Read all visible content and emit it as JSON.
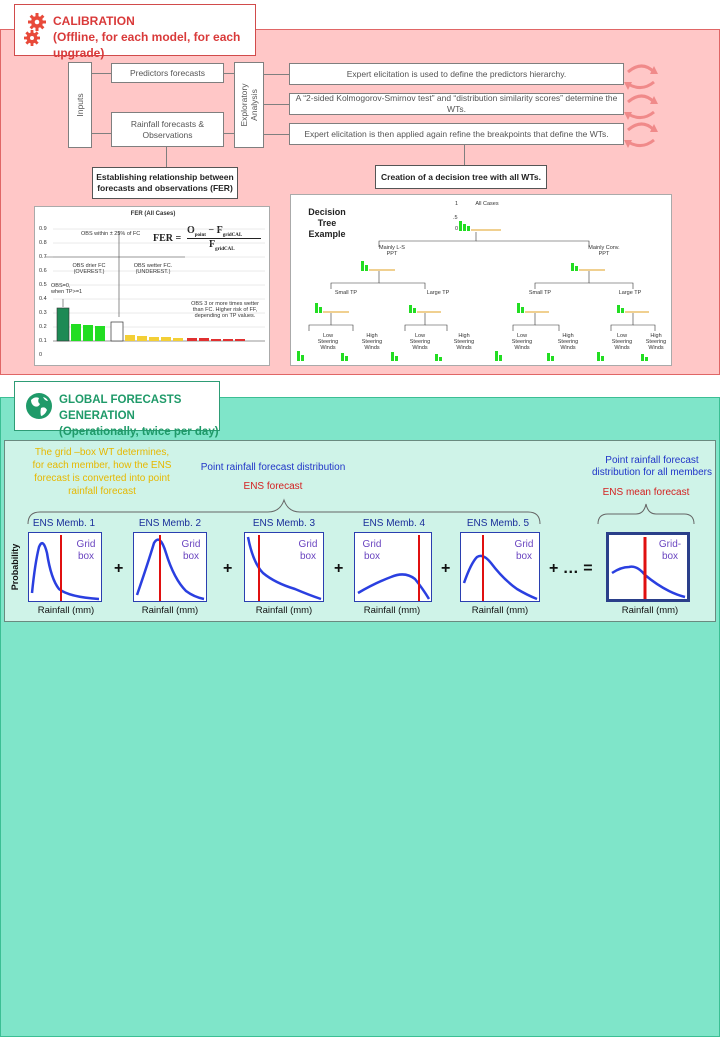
{
  "calibration": {
    "title": "CALIBRATION",
    "subtitle": "(Offline, for each model, for each upgrade)",
    "inputs_label": "Inputs",
    "predictors": "Predictors forecasts",
    "rainfall_obs": "Rainfall forecasts & Observations",
    "exploratory": "Exploratory Analysis",
    "step1": "Expert elicitation is used to define the predictors hierarchy.",
    "step2": "A “2-sided Kolmogorov-Smirnov test” and “distribution similarity scores” determine the WTs.",
    "step3": "Expert elicitation is then applied again refine the breakpoints that define the WTs.",
    "establish": "Establishing relationship between forecasts and observations (FER)",
    "creation": "Creation of a decision tree with all WTs.",
    "fer_chart": {
      "title": "FER (All Cases)",
      "formula_lhs": "FER =",
      "formula_num": "O",
      "formula_num_sub": "point",
      "formula_minus": " − F",
      "formula_minus_sub": "gridCAL",
      "formula_den": "F",
      "formula_den_sub": "gridCAL",
      "obs_within": "OBS within ± 25% of FC",
      "obs_drier": "OBS drier FC (OVEREST.)",
      "obs_wetter": "OBS wetter FC. (UNDEREST.)",
      "obs_zero": "OBS=0, when TP>=1",
      "obs_3x": "OBS 3 or more times wetter than FC. Higher risk of FF, depending on TP values.",
      "y_ticks": [
        "0.9",
        "0.8",
        "0.7",
        "0.6",
        "0.5",
        "0.4",
        "0.3",
        "0.2",
        "0.1",
        "0"
      ]
    },
    "tree": {
      "title": "Decision Tree Example",
      "root": "All Cases",
      "n1": "Mainly L-S PPT",
      "n2": "Mainly Conv. PPT",
      "n3": "Small TP",
      "n4": "Large TP",
      "n5": "Small TP",
      "n6": "Large TP",
      "leaf_low": "Low Steering Winds",
      "leaf_high": "High Steering Winds",
      "tick_1": "1",
      "tick_5": ".5",
      "tick_0": "0"
    }
  },
  "global": {
    "title": "GLOBAL FORECASTS GENERATION",
    "subtitle": "(Operationally, twice per day)",
    "yellow_note": "The grid –box WT determines, for each member, how the ENS forecast is converted into point rainfall forecast",
    "point_dist": "Point rainfall forecast distribution",
    "ens_forecast": "ENS forecast",
    "point_dist_all": "Point rainfall forecast distribution for all members",
    "ens_mean": "ENS mean forecast",
    "members": [
      "ENS Memb. 1",
      "ENS Memb. 2",
      "ENS Memb. 3",
      "ENS Memb. 4",
      "ENS Memb. 5"
    ],
    "grid_box": "Grid box",
    "grid_box_hyph": "Grid-box",
    "ylabel": "Probability",
    "xlabel": "Rainfall (mm)",
    "plus": "+",
    "ellipsis_eq": "+ … =",
    "colors": {
      "curve": "#2a3fe0",
      "marker": "#e01010"
    }
  }
}
